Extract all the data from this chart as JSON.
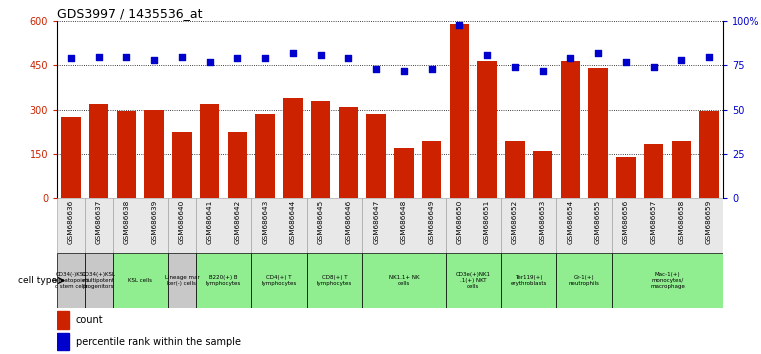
{
  "title": "GDS3997 / 1435536_at",
  "gsm_labels": [
    "GSM686636",
    "GSM686637",
    "GSM686638",
    "GSM686639",
    "GSM686640",
    "GSM686641",
    "GSM686642",
    "GSM686643",
    "GSM686644",
    "GSM686645",
    "GSM686646",
    "GSM686647",
    "GSM686648",
    "GSM686649",
    "GSM686650",
    "GSM686651",
    "GSM686652",
    "GSM686653",
    "GSM686654",
    "GSM686655",
    "GSM686656",
    "GSM686657",
    "GSM686658",
    "GSM686659"
  ],
  "counts": [
    275,
    320,
    295,
    300,
    225,
    320,
    225,
    285,
    340,
    330,
    310,
    285,
    170,
    195,
    590,
    465,
    195,
    160,
    465,
    440,
    140,
    185,
    195,
    295
  ],
  "percentiles": [
    79,
    80,
    80,
    78,
    80,
    77,
    79,
    79,
    82,
    81,
    79,
    73,
    72,
    73,
    98,
    81,
    74,
    72,
    79,
    82,
    77,
    74,
    78,
    80
  ],
  "cell_type_groups": [
    {
      "label": "CD34(-)KSL\nhematopoieti\nc stem cells",
      "start": 0,
      "end": 1,
      "color": "#c8c8c8"
    },
    {
      "label": "CD34(+)KSL\nmultipotent\nprogenitors",
      "start": 1,
      "end": 2,
      "color": "#c8c8c8"
    },
    {
      "label": "KSL cells",
      "start": 2,
      "end": 4,
      "color": "#90ee90"
    },
    {
      "label": "Lineage mar\nker(-) cells",
      "start": 4,
      "end": 5,
      "color": "#c8c8c8"
    },
    {
      "label": "B220(+) B\nlymphocytes",
      "start": 5,
      "end": 7,
      "color": "#90ee90"
    },
    {
      "label": "CD4(+) T\nlymphocytes",
      "start": 7,
      "end": 9,
      "color": "#90ee90"
    },
    {
      "label": "CD8(+) T\nlymphocytes",
      "start": 9,
      "end": 11,
      "color": "#90ee90"
    },
    {
      "label": "NK1.1+ NK\ncells",
      "start": 11,
      "end": 14,
      "color": "#90ee90"
    },
    {
      "label": "CD3e(+)NK1\n.1(+) NKT\ncells",
      "start": 14,
      "end": 16,
      "color": "#90ee90"
    },
    {
      "label": "Ter119(+)\nerythroblasts",
      "start": 16,
      "end": 18,
      "color": "#90ee90"
    },
    {
      "label": "Gr-1(+)\nneutrophils",
      "start": 18,
      "end": 20,
      "color": "#90ee90"
    },
    {
      "label": "Mac-1(+)\nmonocytes/\nmacrophage",
      "start": 20,
      "end": 24,
      "color": "#90ee90"
    }
  ],
  "bar_color": "#cc2200",
  "dot_color": "#0000cc",
  "left_ylim": [
    0,
    600
  ],
  "right_ylim": [
    0,
    100
  ],
  "left_yticks": [
    0,
    150,
    300,
    450,
    600
  ],
  "right_yticks": [
    0,
    25,
    50,
    75,
    100
  ],
  "right_yticklabels": [
    "0",
    "25",
    "50",
    "75",
    "100%"
  ],
  "cell_type_label": "cell type",
  "legend_count_label": "count",
  "legend_percentile_label": "percentile rank within the sample"
}
